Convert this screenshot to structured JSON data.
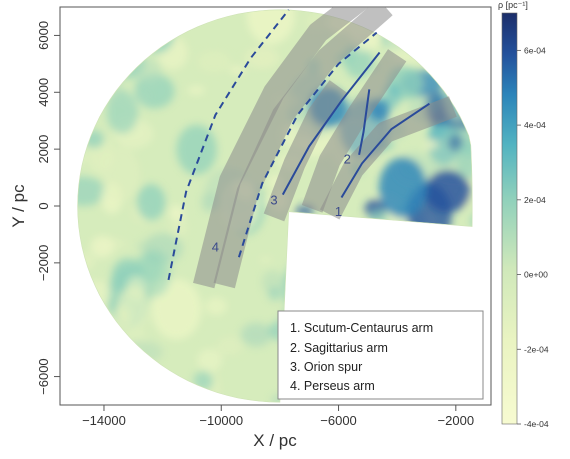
{
  "chart_data": {
    "type": "heatmap",
    "title": "",
    "xlabel": "X / pc",
    "ylabel": "Y / pc",
    "xlim": [
      -15500,
      -800
    ],
    "ylim": [
      -7000,
      7000
    ],
    "x_ticks": [
      -14000,
      -10000,
      -6000,
      -2000
    ],
    "x_tick_labels": [
      "−14000",
      "−10000",
      "−6000",
      "−2000"
    ],
    "y_ticks": [
      -6000,
      -2000,
      0,
      2000,
      4000,
      6000
    ],
    "y_tick_labels": [
      "−6000",
      "−2000",
      "0",
      "2000",
      "4000",
      "6000"
    ],
    "map_extent": {
      "sun_position": [
        -8000,
        0
      ],
      "outer_radius_pc": 6900,
      "angle_range_deg": [
        -60,
        100
      ]
    },
    "colorbar": {
      "label": "ρ [pc⁻¹]",
      "range": [
        -0.0004,
        0.0007
      ],
      "ticks": [
        -0.0004,
        -0.0002,
        0,
        0.0002,
        0.0004,
        0.0006
      ],
      "tick_labels": [
        "-4e-04",
        "-2e-04",
        "0e+00",
        "2e-04",
        "4e-04",
        "6e-04"
      ],
      "colors": [
        "#f7fbd1",
        "#e4f1bc",
        "#c8e6bb",
        "#8fd0bb",
        "#52b3c1",
        "#2c85ba",
        "#23519c",
        "#1c2e6a"
      ]
    },
    "arms": [
      {
        "id": 1,
        "number_label": "1",
        "name": "Scutum-Centaurus arm",
        "style": "solid",
        "points": [
          [
            -5900,
            300
          ],
          [
            -5200,
            1500
          ],
          [
            -4200,
            2700
          ],
          [
            -2900,
            3600
          ]
        ],
        "band": [
          [
            -6300,
            -300
          ],
          [
            -5500,
            1300
          ],
          [
            -4400,
            2600
          ],
          [
            -2100,
            3500
          ]
        ],
        "label_pos": [
          -6000,
          -350
        ]
      },
      {
        "id": 2,
        "number_label": "2",
        "name": "Sagittarius arm",
        "style": "solid",
        "points": [
          [
            -7900,
            400
          ],
          [
            -7000,
            2100
          ],
          [
            -5900,
            3700
          ],
          [
            -4600,
            5400
          ]
        ],
        "spur": [
          [
            -4950,
            4100
          ],
          [
            -5150,
            2600
          ],
          [
            -5300,
            1800
          ]
        ],
        "band": [
          [
            -6900,
            -100
          ],
          [
            -6300,
            1600
          ],
          [
            -5300,
            3300
          ],
          [
            -4000,
            5300
          ]
        ],
        "label_pos": [
          -5700,
          1500
        ]
      },
      {
        "id": 3,
        "number_label": "3",
        "name": "Orion spur",
        "style": "band",
        "band": [
          [
            -8200,
            -400
          ],
          [
            -7500,
            1500
          ],
          [
            -6700,
            3200
          ],
          [
            -6000,
            4200
          ]
        ],
        "label_pos": [
          -8200,
          50
        ]
      },
      {
        "id": 4,
        "number_label": "4",
        "name": "Perseus arm",
        "style": "dashed",
        "points": [
          [
            -9400,
            -1800
          ],
          [
            -8600,
            800
          ],
          [
            -7400,
            3200
          ],
          [
            -6000,
            5000
          ],
          [
            -4700,
            6100
          ]
        ],
        "band": [
          [
            -9900,
            -2800
          ],
          [
            -9100,
            500
          ],
          [
            -7900,
            3200
          ],
          [
            -6400,
            5200
          ],
          [
            -4400,
            7000
          ]
        ],
        "label_pos": [
          -10200,
          -1600
        ]
      },
      {
        "id": 0,
        "number_label": "",
        "name": "",
        "style": "dashed",
        "points": [
          [
            -11800,
            -2600
          ],
          [
            -11200,
            500
          ],
          [
            -10200,
            3200
          ],
          [
            -9000,
            5200
          ],
          [
            -7700,
            6900
          ]
        ]
      },
      {
        "id": 0,
        "number_label": "",
        "name": "",
        "style": "band",
        "band": [
          [
            -10600,
            -2800
          ],
          [
            -9700,
            900
          ],
          [
            -8200,
            4000
          ],
          [
            -6700,
            6100
          ],
          [
            -5200,
            7300
          ]
        ]
      }
    ],
    "legend": {
      "position": "bottom-right",
      "entries": [
        "1.  Scutum-Centaurus arm",
        "2.  Sagittarius arm",
        "3.  Orion spur",
        "4.  Perseus arm"
      ]
    }
  }
}
